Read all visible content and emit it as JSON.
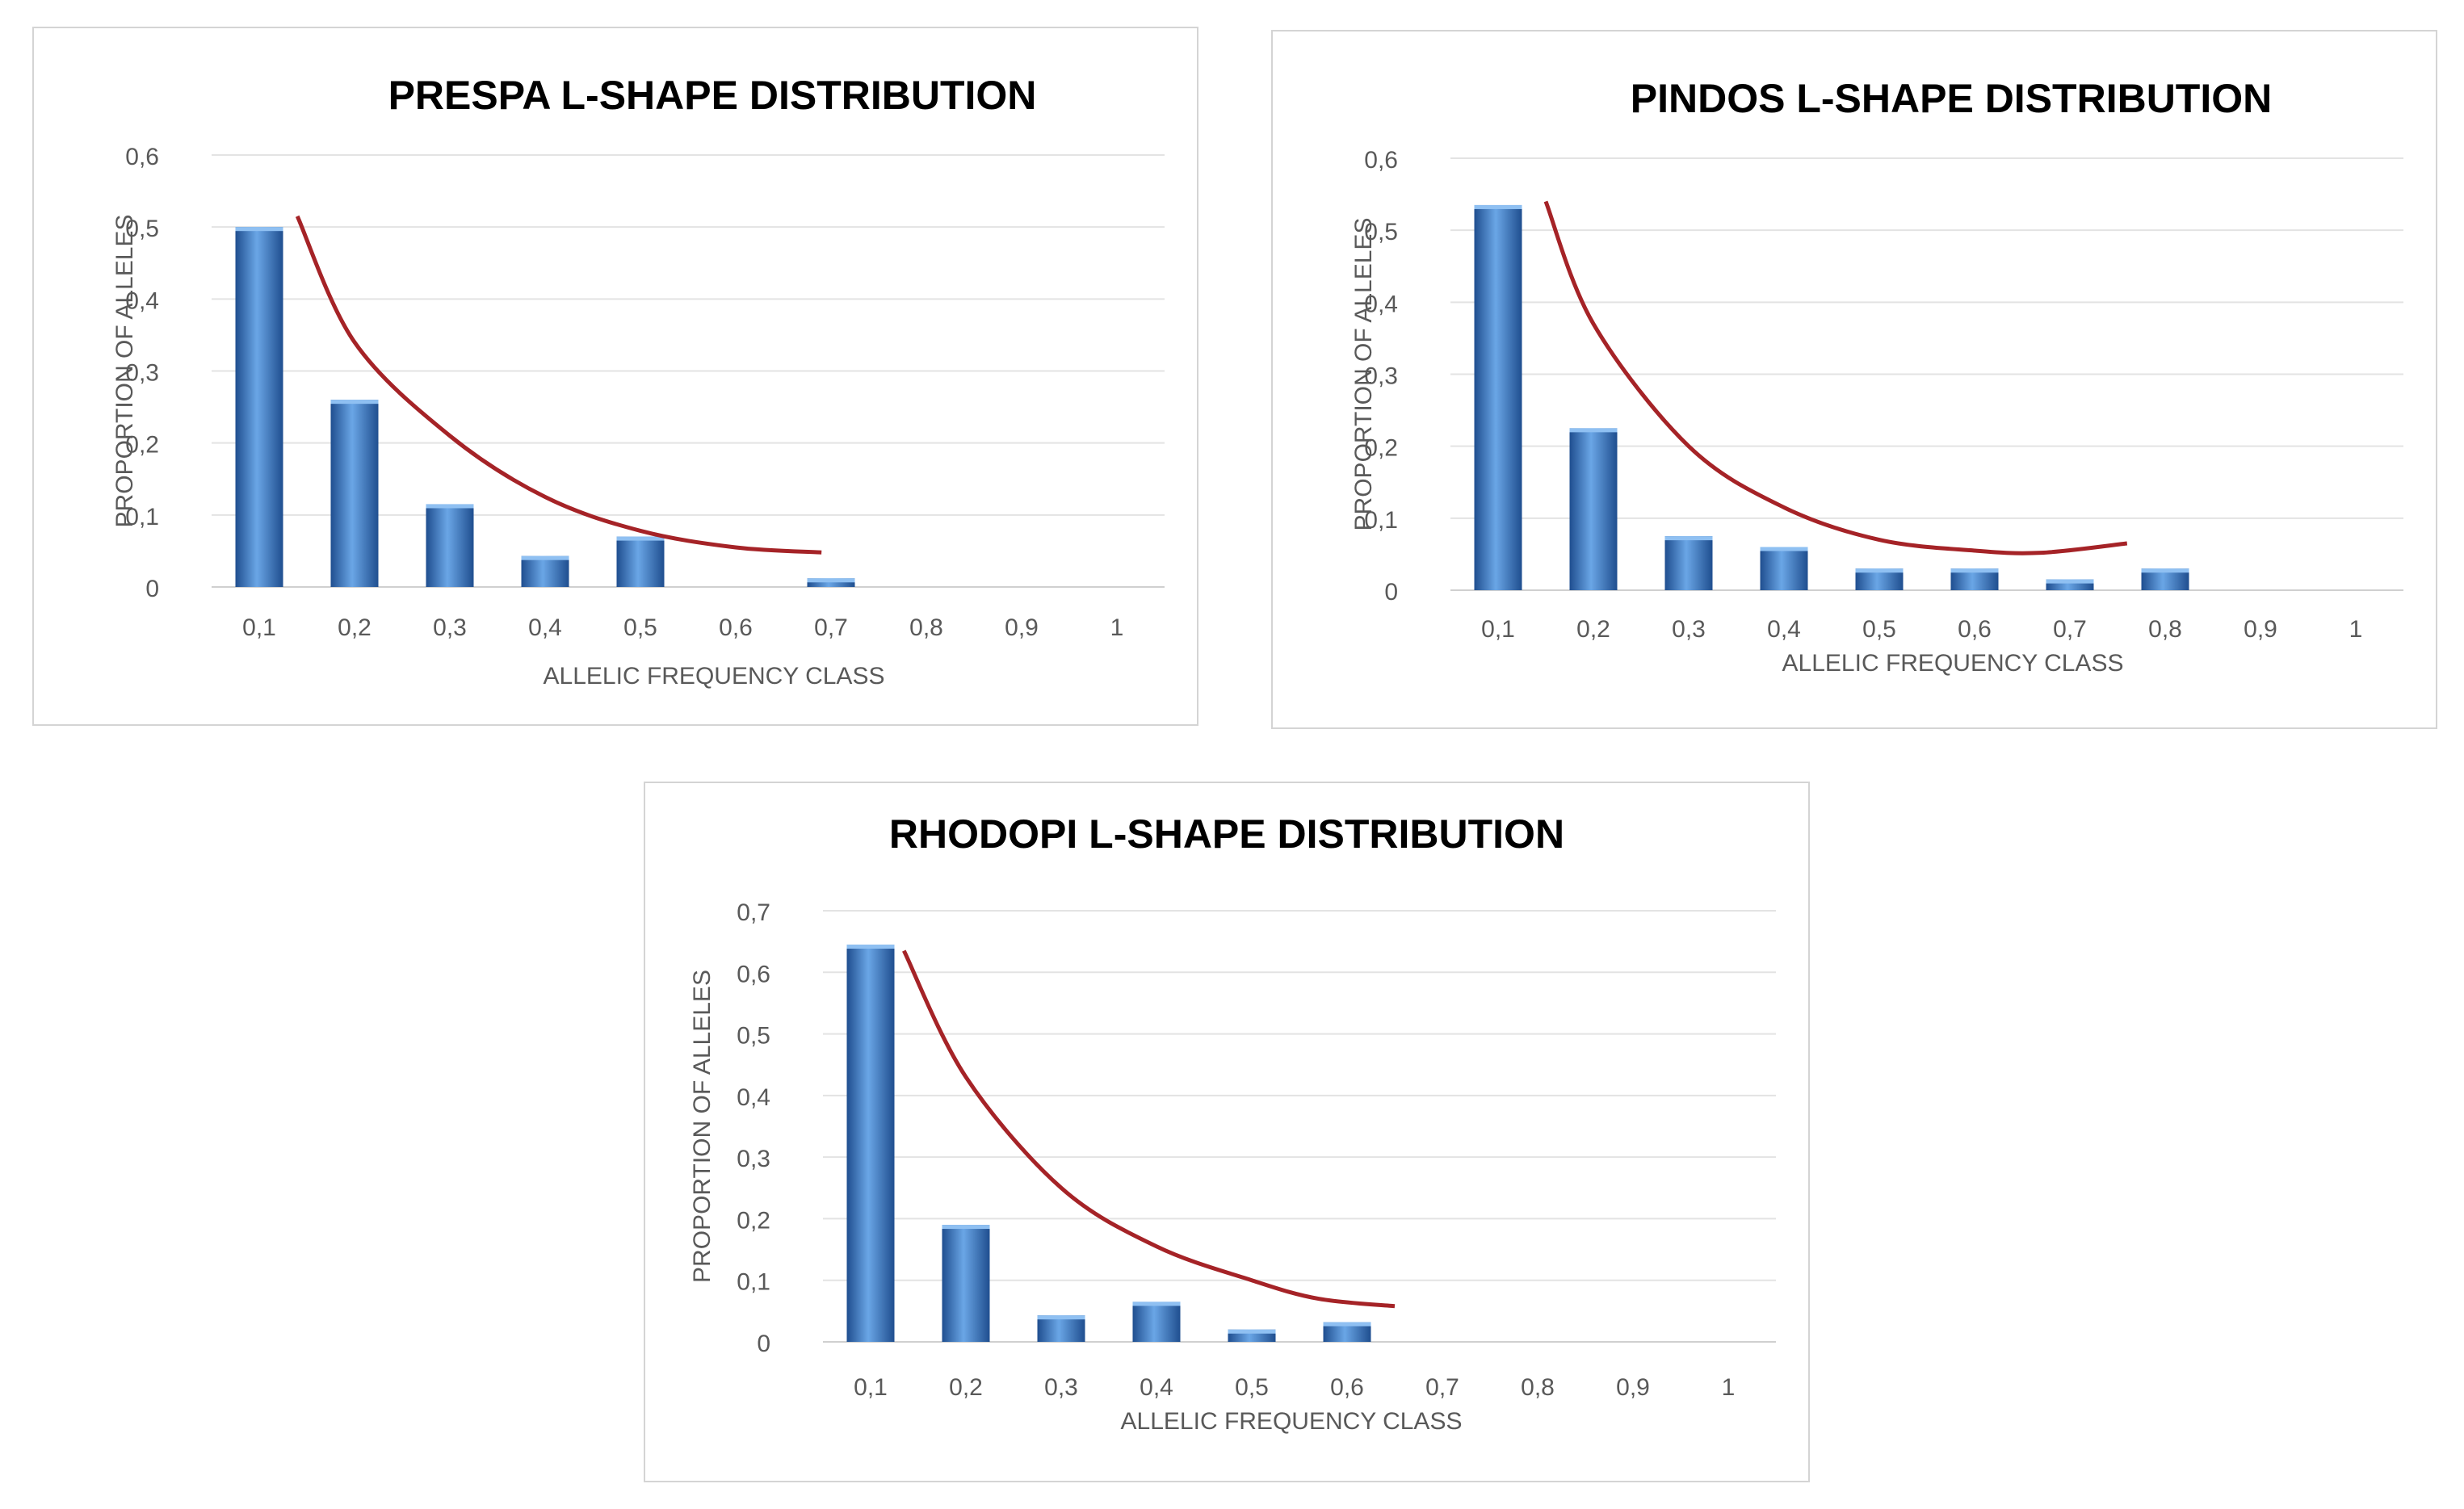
{
  "colors": {
    "bar_dark": "#1f4e8f",
    "bar_light": "#6aa6e6",
    "trend": "#a52327",
    "grid": "#e3e3e3"
  },
  "chart_data": [
    {
      "type": "bar",
      "title": "PRESPA L-SHAPE DISTRIBUTION",
      "xlabel": "ALLELIC FREQUENCY CLASS",
      "ylabel": "PROPORTION OF ALLELES",
      "categories": [
        "0,1",
        "0,2",
        "0,3",
        "0,4",
        "0,5",
        "0,6",
        "0,7",
        "0,8",
        "0,9",
        "1"
      ],
      "values": [
        0.5,
        0.26,
        0.115,
        0.043,
        0.07,
        0,
        0.012,
        0,
        0,
        0
      ],
      "ylim": [
        0,
        0.6
      ],
      "yticks": [
        0,
        0.1,
        0.2,
        0.3,
        0.4,
        0.5,
        0.6
      ],
      "ytick_labels": [
        "0",
        "0,1",
        "0,2",
        "0,3",
        "0,4",
        "0,5",
        "0,6"
      ],
      "grid": true,
      "trendline": {
        "type": "curve",
        "points": [
          [
            1.4,
            0.515
          ],
          [
            2.0,
            0.34
          ],
          [
            3.0,
            0.21
          ],
          [
            4.0,
            0.125
          ],
          [
            5.0,
            0.078
          ],
          [
            6.0,
            0.055
          ],
          [
            6.9,
            0.048
          ]
        ]
      }
    },
    {
      "type": "bar",
      "title": "PINDOS L-SHAPE DISTRIBUTION",
      "xlabel": "ALLELIC FREQUENCY CLASS",
      "ylabel": "PROPORTION OF ALLELES",
      "categories": [
        "0,1",
        "0,2",
        "0,3",
        "0,4",
        "0,5",
        "0,6",
        "0,7",
        "0,8",
        "0,9",
        "1"
      ],
      "values": [
        0.535,
        0.225,
        0.075,
        0.06,
        0.03,
        0.03,
        0.015,
        0.03,
        0,
        0
      ],
      "ylim": [
        0,
        0.6
      ],
      "yticks": [
        0,
        0.1,
        0.2,
        0.3,
        0.4,
        0.5,
        0.6
      ],
      "ytick_labels": [
        "0",
        "0,1",
        "0,2",
        "0,3",
        "0,4",
        "0,5",
        "0,6"
      ],
      "grid": true,
      "trendline": {
        "type": "curve",
        "points": [
          [
            1.5,
            0.54
          ],
          [
            2.0,
            0.37
          ],
          [
            3.0,
            0.2
          ],
          [
            4.0,
            0.115
          ],
          [
            5.0,
            0.07
          ],
          [
            6.0,
            0.055
          ],
          [
            6.7,
            0.052
          ],
          [
            7.6,
            0.065
          ]
        ]
      }
    },
    {
      "type": "bar",
      "title": "RHODOPI L-SHAPE DISTRIBUTION",
      "xlabel": "ALLELIC FREQUENCY CLASS",
      "ylabel": "PROPORTION OF ALLELES",
      "categories": [
        "0,1",
        "0,2",
        "0,3",
        "0,4",
        "0,5",
        "0,6",
        "0,7",
        "0,8",
        "0,9",
        "1"
      ],
      "values": [
        0.645,
        0.19,
        0.043,
        0.065,
        0.02,
        0.032,
        0,
        0,
        0,
        0
      ],
      "ylim": [
        0,
        0.7
      ],
      "yticks": [
        0,
        0.1,
        0.2,
        0.3,
        0.4,
        0.5,
        0.6,
        0.7
      ],
      "ytick_labels": [
        "0",
        "0,1",
        "0,2",
        "0,3",
        "0,4",
        "0,5",
        "0,6",
        "0,7"
      ],
      "grid": true,
      "trendline": {
        "type": "curve",
        "points": [
          [
            1.35,
            0.635
          ],
          [
            2.0,
            0.43
          ],
          [
            3.0,
            0.25
          ],
          [
            4.0,
            0.155
          ],
          [
            5.0,
            0.1
          ],
          [
            5.7,
            0.07
          ],
          [
            6.5,
            0.058
          ]
        ]
      }
    }
  ]
}
